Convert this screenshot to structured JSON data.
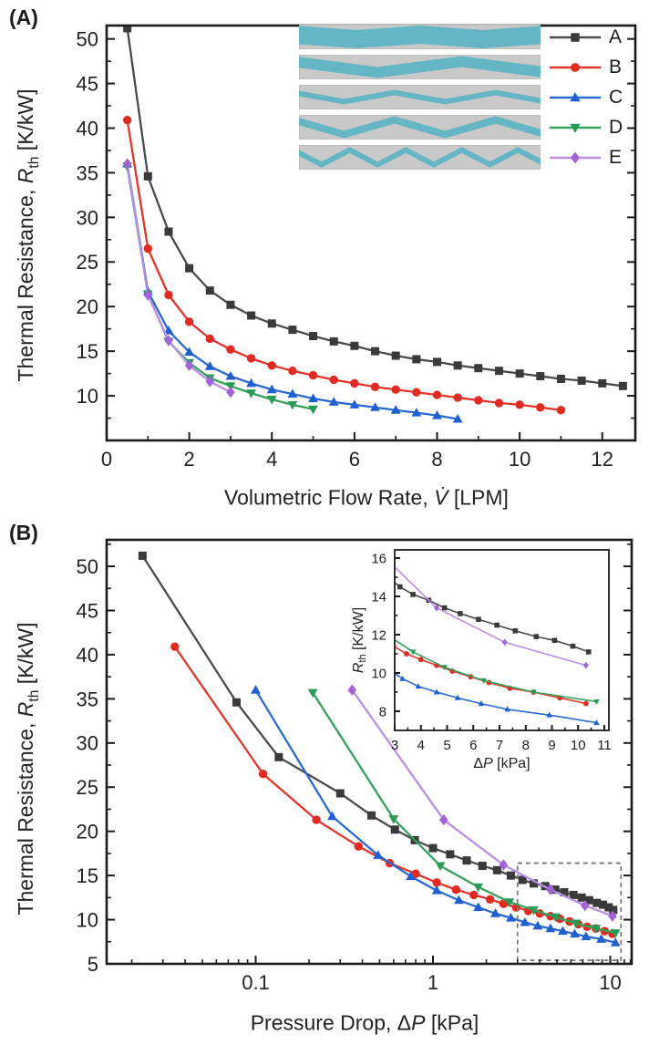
{
  "figure": {
    "panel_a_label": "(A)",
    "panel_b_label": "(B)"
  },
  "labels": {
    "y_prefix": "Thermal Resistance, ",
    "y_symbol": "R",
    "y_sub": "th",
    "y_unit": " [K/kW]",
    "a_x_prefix": "Volumetric Flow Rate, ",
    "a_x_symbol": "V̇",
    "a_x_unit": " [LPM]",
    "b_x_prefix": "Pressure Drop, Δ",
    "b_x_symbol": "P",
    "b_x_unit": " [kPa]",
    "inset_x_prefix": "Δ",
    "inset_x_symbol": "P",
    "inset_x_unit": " [kPa]",
    "inset_y_symbol": "R",
    "inset_y_sub": "th",
    "inset_y_unit": " [K/kW]"
  },
  "legend": {
    "channel_fill": "#65b6c4",
    "channel_bg": "#c9c9c9",
    "channel_border": "#b3b3b3",
    "items": [
      {
        "label": "A",
        "channel": {
          "stroke": 20,
          "amplitude": 2.5,
          "periods": 2
        }
      },
      {
        "label": "B",
        "channel": {
          "stroke": 12,
          "amplitude": 6,
          "periods": 1.5
        }
      },
      {
        "label": "C",
        "channel": {
          "stroke": 6,
          "amplitude": 5,
          "periods": 2.5
        }
      },
      {
        "label": "D",
        "channel": {
          "stroke": 8,
          "amplitude": 8,
          "periods": 2.5
        }
      },
      {
        "label": "E",
        "channel": {
          "stroke": 6,
          "amplitude": 8,
          "periods": 4.5
        }
      }
    ]
  },
  "chart_data": [
    {
      "id": "panelA",
      "type": "line",
      "title": "",
      "xlabel": "Volumetric Flow Rate, V̇ [LPM]",
      "ylabel": "Thermal Resistance, R_th [K/kW]",
      "x_scale": "linear",
      "xlim": [
        0,
        12.8
      ],
      "ylim": [
        5,
        51.5
      ],
      "x_ticks": [
        0,
        2,
        4,
        6,
        8,
        10,
        12
      ],
      "x_tick_labels": [
        "0",
        "2",
        "4",
        "6",
        "8",
        "10",
        "12"
      ],
      "x_minor": [
        1,
        3,
        5,
        7,
        9,
        11
      ],
      "y_ticks": [
        10,
        15,
        20,
        25,
        30,
        35,
        40,
        45,
        50
      ],
      "y_tick_labels": [
        "10",
        "15",
        "20",
        "25",
        "30",
        "35",
        "40",
        "45",
        "50"
      ],
      "y_minor": [
        7.5,
        12.5,
        17.5,
        22.5,
        27.5,
        32.5,
        37.5,
        42.5,
        47.5
      ],
      "grid": false,
      "legend_position": "top-right",
      "series": [
        {
          "name": "A",
          "marker": "square",
          "color": "#4a4a4a",
          "marker_color": "#3a3a3a",
          "x": [
            0.5,
            1.0,
            1.5,
            2.0,
            2.5,
            3.0,
            3.5,
            4.0,
            4.5,
            5.0,
            5.5,
            6.0,
            6.5,
            7.0,
            7.5,
            8.0,
            8.5,
            9.0,
            9.5,
            10.0,
            10.5,
            11.0,
            11.5,
            12.0,
            12.5
          ],
          "y": [
            51.2,
            34.6,
            28.4,
            24.3,
            21.8,
            20.2,
            19.0,
            18.1,
            17.4,
            16.7,
            16.1,
            15.6,
            15.0,
            14.5,
            14.1,
            13.8,
            13.4,
            13.1,
            12.8,
            12.5,
            12.2,
            11.9,
            11.7,
            11.4,
            11.1
          ]
        },
        {
          "name": "B",
          "marker": "circle",
          "color": "#e4352c",
          "marker_color": "#e02a22",
          "x": [
            0.5,
            1.0,
            1.5,
            2.0,
            2.5,
            3.0,
            3.5,
            4.0,
            4.5,
            5.0,
            5.5,
            6.0,
            6.5,
            7.0,
            7.5,
            8.0,
            8.5,
            9.0,
            9.5,
            10.0,
            10.5,
            11.0
          ],
          "y": [
            40.9,
            26.5,
            21.3,
            18.3,
            16.4,
            15.2,
            14.2,
            13.4,
            12.8,
            12.3,
            11.8,
            11.4,
            11.0,
            10.7,
            10.4,
            10.1,
            9.8,
            9.5,
            9.2,
            9.0,
            8.7,
            8.4
          ]
        },
        {
          "name": "C",
          "marker": "triangle-up",
          "color": "#2a6ad0",
          "marker_color": "#1f5fd0",
          "x": [
            0.5,
            1.0,
            1.5,
            2.0,
            2.5,
            3.0,
            3.5,
            4.0,
            4.5,
            5.0,
            5.5,
            6.0,
            6.5,
            7.0,
            7.5,
            8.0,
            8.5
          ],
          "y": [
            36.0,
            21.7,
            17.3,
            14.9,
            13.3,
            12.2,
            11.4,
            10.7,
            10.2,
            9.7,
            9.3,
            9.0,
            8.7,
            8.4,
            8.1,
            7.8,
            7.4
          ]
        },
        {
          "name": "D",
          "marker": "triangle-down",
          "color": "#34a15d",
          "marker_color": "#2b9a54",
          "x": [
            0.5,
            1.0,
            1.5,
            2.0,
            2.5,
            3.0,
            3.5,
            4.0,
            4.5,
            5.0
          ],
          "y": [
            35.7,
            21.4,
            16.1,
            13.7,
            12.0,
            11.1,
            10.3,
            9.6,
            9.0,
            8.5
          ]
        },
        {
          "name": "E",
          "marker": "diamond",
          "color": "#b98fe4",
          "marker_color": "#a263d6",
          "x": [
            0.5,
            1.0,
            1.5,
            2.0,
            2.5,
            3.0
          ],
          "y": [
            36.0,
            21.3,
            16.2,
            13.4,
            11.6,
            10.4
          ]
        }
      ]
    },
    {
      "id": "panelB",
      "type": "line",
      "title": "",
      "xlabel": "Pressure Drop, ΔP [kPa]",
      "ylabel": "Thermal Resistance, R_th [K/kW]",
      "x_scale": "log",
      "xlim": [
        0.0144,
        13.2
      ],
      "ylim": [
        5,
        53
      ],
      "x_ticks": [
        0.1,
        1,
        10
      ],
      "x_tick_labels": [
        "0.1",
        "1",
        "10"
      ],
      "y_ticks": [
        5,
        10,
        15,
        20,
        25,
        30,
        35,
        40,
        45,
        50
      ],
      "y_tick_labels": [
        "5",
        "10",
        "15",
        "20",
        "25",
        "30",
        "35",
        "40",
        "45",
        "50"
      ],
      "y_minor": [
        7.5,
        12.5,
        17.5,
        22.5,
        27.5,
        32.5,
        37.5,
        42.5,
        47.5,
        52.5
      ],
      "grid": false,
      "zoom_region": {
        "x": [
          3.0,
          11.5
        ],
        "y": [
          5.4,
          16.4
        ]
      },
      "series": [
        {
          "name": "A",
          "marker": "square",
          "color": "#4a4a4a",
          "marker_color": "#3a3a3a",
          "x": [
            0.023,
            0.078,
            0.135,
            0.3,
            0.45,
            0.61,
            0.79,
            1.0,
            1.25,
            1.55,
            1.9,
            2.3,
            2.75,
            3.2,
            3.7,
            4.3,
            4.9,
            5.5,
            6.2,
            6.9,
            7.6,
            8.4,
            9.1,
            9.8,
            10.4
          ],
          "y": [
            51.2,
            34.6,
            28.4,
            24.3,
            21.8,
            20.2,
            19.0,
            18.1,
            17.4,
            16.7,
            16.1,
            15.6,
            15.0,
            14.5,
            14.1,
            13.8,
            13.4,
            13.1,
            12.8,
            12.5,
            12.2,
            11.9,
            11.7,
            11.4,
            11.1
          ]
        },
        {
          "name": "B",
          "marker": "circle",
          "color": "#e4352c",
          "marker_color": "#e02a22",
          "x": [
            0.035,
            0.11,
            0.22,
            0.38,
            0.57,
            0.8,
            1.05,
            1.35,
            1.7,
            2.1,
            2.5,
            2.95,
            3.45,
            4.0,
            4.6,
            5.2,
            5.9,
            6.6,
            7.4,
            8.3,
            9.3,
            10.3
          ],
          "y": [
            40.9,
            26.5,
            21.3,
            18.3,
            16.4,
            15.2,
            14.2,
            13.4,
            12.8,
            12.3,
            11.8,
            11.4,
            11.0,
            10.7,
            10.4,
            10.1,
            9.8,
            9.5,
            9.2,
            9.0,
            8.7,
            8.4
          ]
        },
        {
          "name": "C",
          "marker": "triangle-up",
          "color": "#2a6ad0",
          "marker_color": "#1f5fd0",
          "x": [
            0.1,
            0.27,
            0.49,
            0.75,
            1.05,
            1.4,
            1.8,
            2.25,
            2.75,
            3.3,
            3.9,
            4.6,
            5.4,
            6.3,
            7.3,
            8.9,
            10.7
          ],
          "y": [
            36.0,
            21.7,
            17.3,
            14.9,
            13.3,
            12.2,
            11.4,
            10.7,
            10.2,
            9.7,
            9.3,
            9.0,
            8.7,
            8.4,
            8.1,
            7.8,
            7.4
          ]
        },
        {
          "name": "D",
          "marker": "triangle-down",
          "color": "#34a15d",
          "marker_color": "#2b9a54",
          "x": [
            0.21,
            0.6,
            1.1,
            1.8,
            2.7,
            3.7,
            4.9,
            6.4,
            8.3,
            10.7
          ],
          "y": [
            35.7,
            21.4,
            16.1,
            13.7,
            12.0,
            11.1,
            10.3,
            9.6,
            9.0,
            8.5
          ]
        },
        {
          "name": "E",
          "marker": "diamond",
          "color": "#b98fe4",
          "marker_color": "#a263d6",
          "x": [
            0.35,
            1.15,
            2.5,
            4.6,
            7.2,
            10.3
          ],
          "y": [
            36.0,
            21.3,
            16.2,
            13.4,
            11.6,
            10.4
          ]
        }
      ],
      "inset": {
        "xlabel": "ΔP [kPa]",
        "ylabel": "R_th [K/kW]",
        "x_scale": "linear",
        "xlim": [
          3,
          11
        ],
        "ylim": [
          7,
          16.43
        ],
        "x_ticks": [
          3,
          4,
          5,
          6,
          7,
          8,
          9,
          10,
          11
        ],
        "x_tick_labels": [
          "3",
          "4",
          "5",
          "6",
          "7",
          "8",
          "9",
          "10",
          "11"
        ],
        "x_minor": [
          3.5,
          4.5,
          5.5,
          6.5,
          7.5,
          8.5,
          9.5,
          10.5
        ],
        "y_ticks": [
          8,
          10,
          12,
          14,
          16
        ],
        "y_tick_labels": [
          "8",
          "10",
          "12",
          "14",
          "16"
        ],
        "y_minor": [
          9,
          11,
          13,
          15
        ]
      }
    }
  ]
}
